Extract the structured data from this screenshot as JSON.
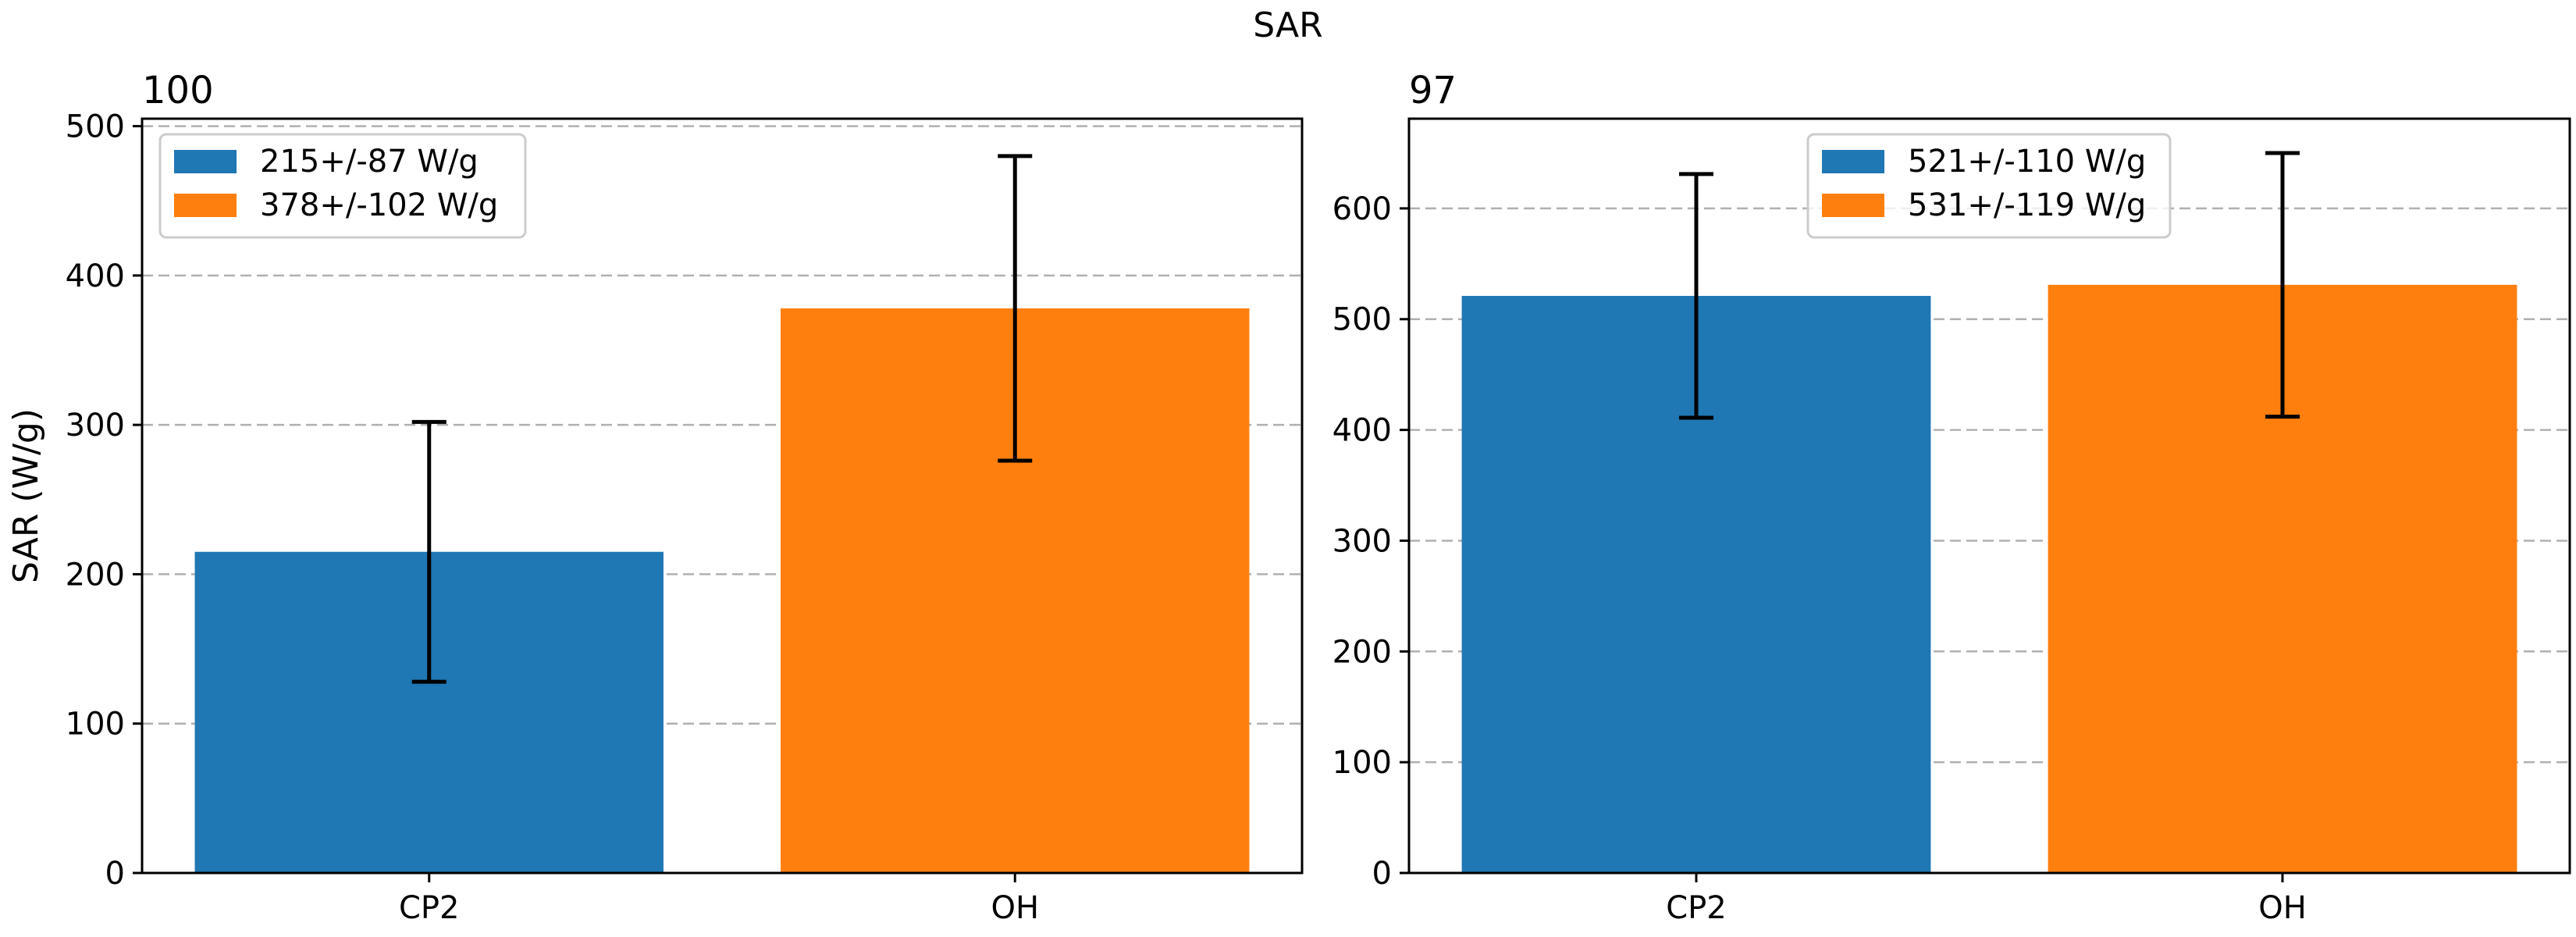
{
  "figure": {
    "suptitle": "SAR"
  },
  "chart_data": [
    {
      "type": "bar",
      "title": "100",
      "xlabel": "",
      "ylabel": "SAR (W/g)",
      "categories": [
        "CP2",
        "OH"
      ],
      "values": [
        215,
        378
      ],
      "errors": [
        87,
        102
      ],
      "colors": [
        "#1f77b4",
        "#ff7f0e"
      ],
      "legend": [
        "215+/-87 W/g",
        "378+/-102 W/g"
      ],
      "legend_position": "upper left",
      "ylim": [
        0,
        505
      ],
      "yticks": [
        0,
        100,
        200,
        300,
        400,
        500
      ],
      "grid": "y, dashed"
    },
    {
      "type": "bar",
      "title": "97",
      "xlabel": "",
      "ylabel": "",
      "categories": [
        "CP2",
        "OH"
      ],
      "values": [
        521,
        531
      ],
      "errors": [
        110,
        119
      ],
      "colors": [
        "#1f77b4",
        "#ff7f0e"
      ],
      "legend": [
        "521+/-110 W/g",
        "531+/-119 W/g"
      ],
      "legend_position": "upper center",
      "ylim": [
        0,
        681
      ],
      "yticks": [
        0,
        100,
        200,
        300,
        400,
        500,
        600
      ],
      "grid": "y, dashed"
    }
  ]
}
